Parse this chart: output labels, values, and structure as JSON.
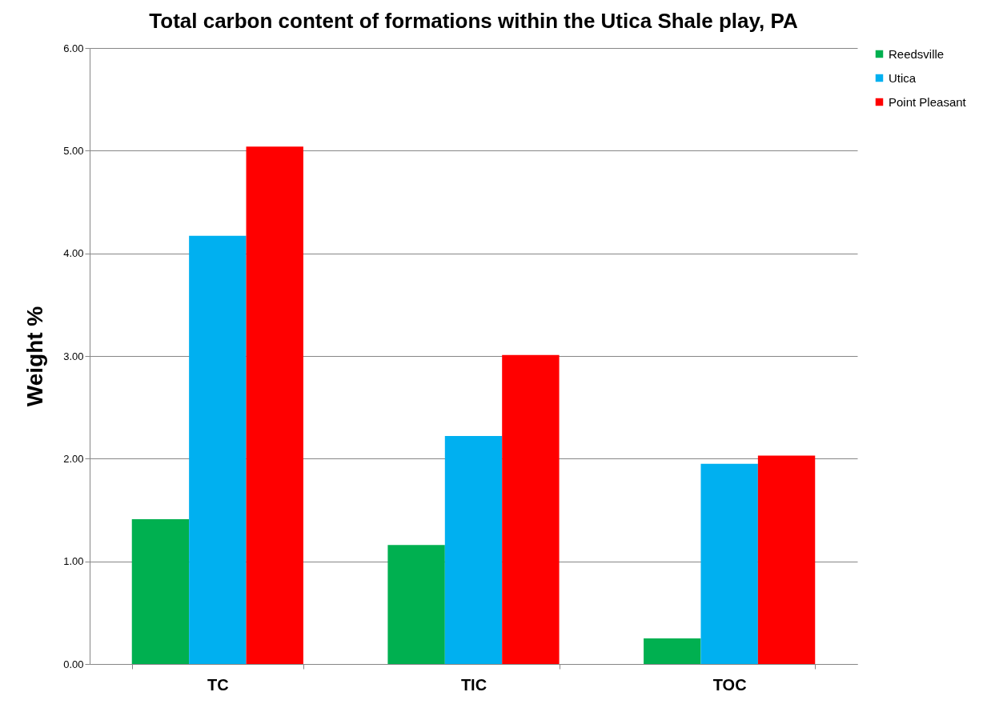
{
  "chart_data": {
    "type": "bar",
    "title": "Total carbon content of formations within the Utica Shale play, PA",
    "ylabel": "Weight %",
    "categories": [
      "TC",
      "TIC",
      "TOC"
    ],
    "series": [
      {
        "name": "Reedsville",
        "color": "#00b050",
        "values": [
          1.41,
          1.16,
          0.25
        ]
      },
      {
        "name": "Utica",
        "color": "#00b0f0",
        "values": [
          4.17,
          2.22,
          1.95
        ]
      },
      {
        "name": "Point Pleasant",
        "color": "#ff0000",
        "values": [
          5.04,
          3.01,
          2.03
        ]
      }
    ],
    "ylim": [
      0,
      6
    ],
    "yticks": [
      {
        "value": 0,
        "label": "0.00"
      },
      {
        "value": 1,
        "label": "1.00"
      },
      {
        "value": 2,
        "label": "2.00"
      },
      {
        "value": 3,
        "label": "3.00"
      },
      {
        "value": 4,
        "label": "4.00"
      },
      {
        "value": 5,
        "label": "5.00"
      },
      {
        "value": 6,
        "label": "6.00"
      }
    ],
    "grid": "y",
    "legend": "right"
  }
}
